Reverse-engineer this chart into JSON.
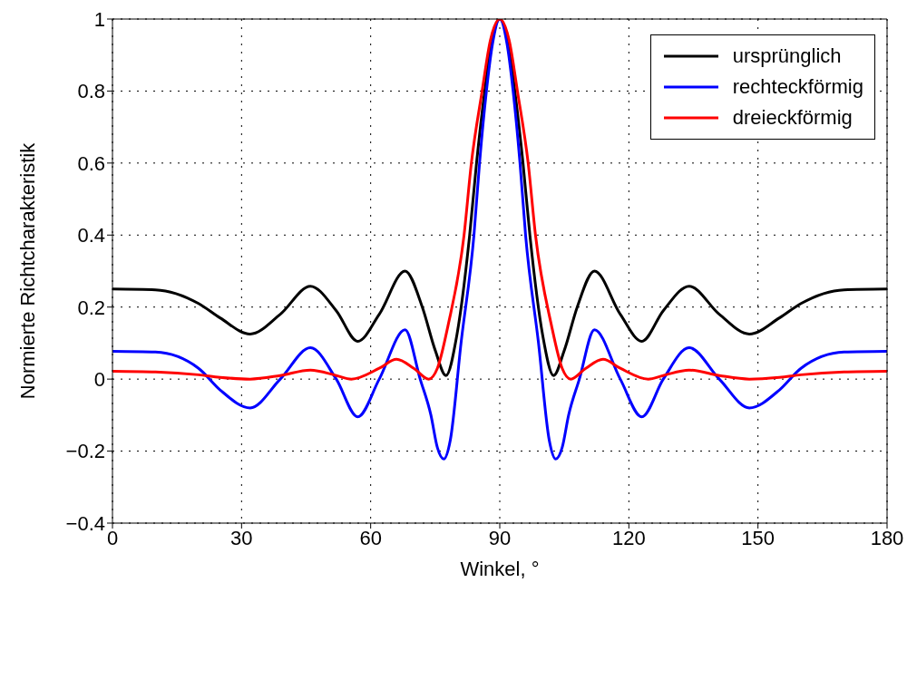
{
  "chart_data": {
    "type": "line",
    "xlabel": "Winkel, °",
    "ylabel": "Normierte Richtcharakteristik",
    "xlim": [
      0,
      180
    ],
    "xticks": [
      0,
      30,
      60,
      90,
      120,
      150,
      180
    ],
    "ylim": [
      -0.4,
      1
    ],
    "yticks": [
      {
        "value": -0.4,
        "label": "−0.4"
      },
      {
        "value": -0.2,
        "label": "−0.2"
      },
      0,
      0.2,
      0.4,
      0.6,
      0.8,
      1
    ],
    "grid": true,
    "legend": "top right",
    "marker": "none",
    "line_style": "solid",
    "series": [
      {
        "name": "ursprünglich",
        "color": "#000000",
        "x": [
          0,
          10,
          20,
          25,
          32,
          39,
          46,
          52,
          57,
          62,
          68,
          72,
          75,
          77.5,
          80,
          83,
          84.6,
          86.5,
          88,
          90,
          92,
          93.5,
          95.4,
          97,
          100,
          102.5,
          105,
          108,
          112,
          118,
          123,
          128,
          134,
          141,
          148,
          155,
          160,
          170,
          180
        ],
        "values": [
          0.25,
          0.248,
          0.21,
          0.17,
          0.125,
          0.18,
          0.258,
          0.19,
          0.105,
          0.18,
          0.3,
          0.2,
          0.08,
          0.01,
          0.12,
          0.4,
          0.6,
          0.8,
          0.93,
          1,
          0.93,
          0.8,
          0.6,
          0.4,
          0.12,
          0.01,
          0.08,
          0.2,
          0.3,
          0.18,
          0.105,
          0.19,
          0.258,
          0.18,
          0.125,
          0.17,
          0.21,
          0.248,
          0.25
        ]
      },
      {
        "name": "rechteckförmig",
        "color": "#0000ff",
        "x": [
          0,
          10,
          20,
          25,
          32,
          39,
          46,
          52,
          57,
          62,
          68,
          71.5,
          74,
          75.5,
          77,
          78.5,
          81,
          84,
          85.3,
          86.9,
          88.3,
          90,
          91.7,
          93.1,
          94.7,
          96,
          99,
          101.5,
          103,
          104.5,
          106,
          108.5,
          112,
          118,
          123,
          128,
          134,
          141,
          148,
          155,
          160,
          170,
          180
        ],
        "values": [
          0.077,
          0.075,
          0.03,
          -0.03,
          -0.08,
          0,
          0.087,
          0,
          -0.105,
          0,
          0.137,
          0,
          -0.1,
          -0.19,
          -0.222,
          -0.17,
          0.1,
          0.4,
          0.6,
          0.8,
          0.93,
          1,
          0.93,
          0.8,
          0.6,
          0.4,
          0.1,
          -0.17,
          -0.222,
          -0.19,
          -0.1,
          0,
          0.137,
          0,
          -0.105,
          0,
          0.087,
          0,
          -0.08,
          -0.03,
          0.03,
          0.075,
          0.077
        ]
      },
      {
        "name": "dreieckförmig",
        "color": "#ff0000",
        "x": [
          0,
          10,
          20,
          25,
          32,
          39,
          46,
          52,
          55.5,
          62,
          66,
          70,
          73.5,
          75.5,
          78,
          81.7,
          83.4,
          85.9,
          87.8,
          90,
          92.2,
          94.1,
          96.6,
          98.3,
          102,
          104.5,
          106.5,
          110,
          114,
          118,
          124.5,
          128,
          134,
          141,
          148,
          155,
          160,
          170,
          180
        ],
        "values": [
          0.022,
          0.02,
          0.012,
          0.005,
          0,
          0.01,
          0.025,
          0.01,
          0,
          0.03,
          0.055,
          0.03,
          0,
          0.03,
          0.15,
          0.4,
          0.6,
          0.8,
          0.94,
          1,
          0.94,
          0.8,
          0.6,
          0.4,
          0.15,
          0.03,
          0,
          0.03,
          0.055,
          0.03,
          0,
          0.01,
          0.025,
          0.01,
          0,
          0.005,
          0.012,
          0.02,
          0.022
        ]
      }
    ]
  }
}
